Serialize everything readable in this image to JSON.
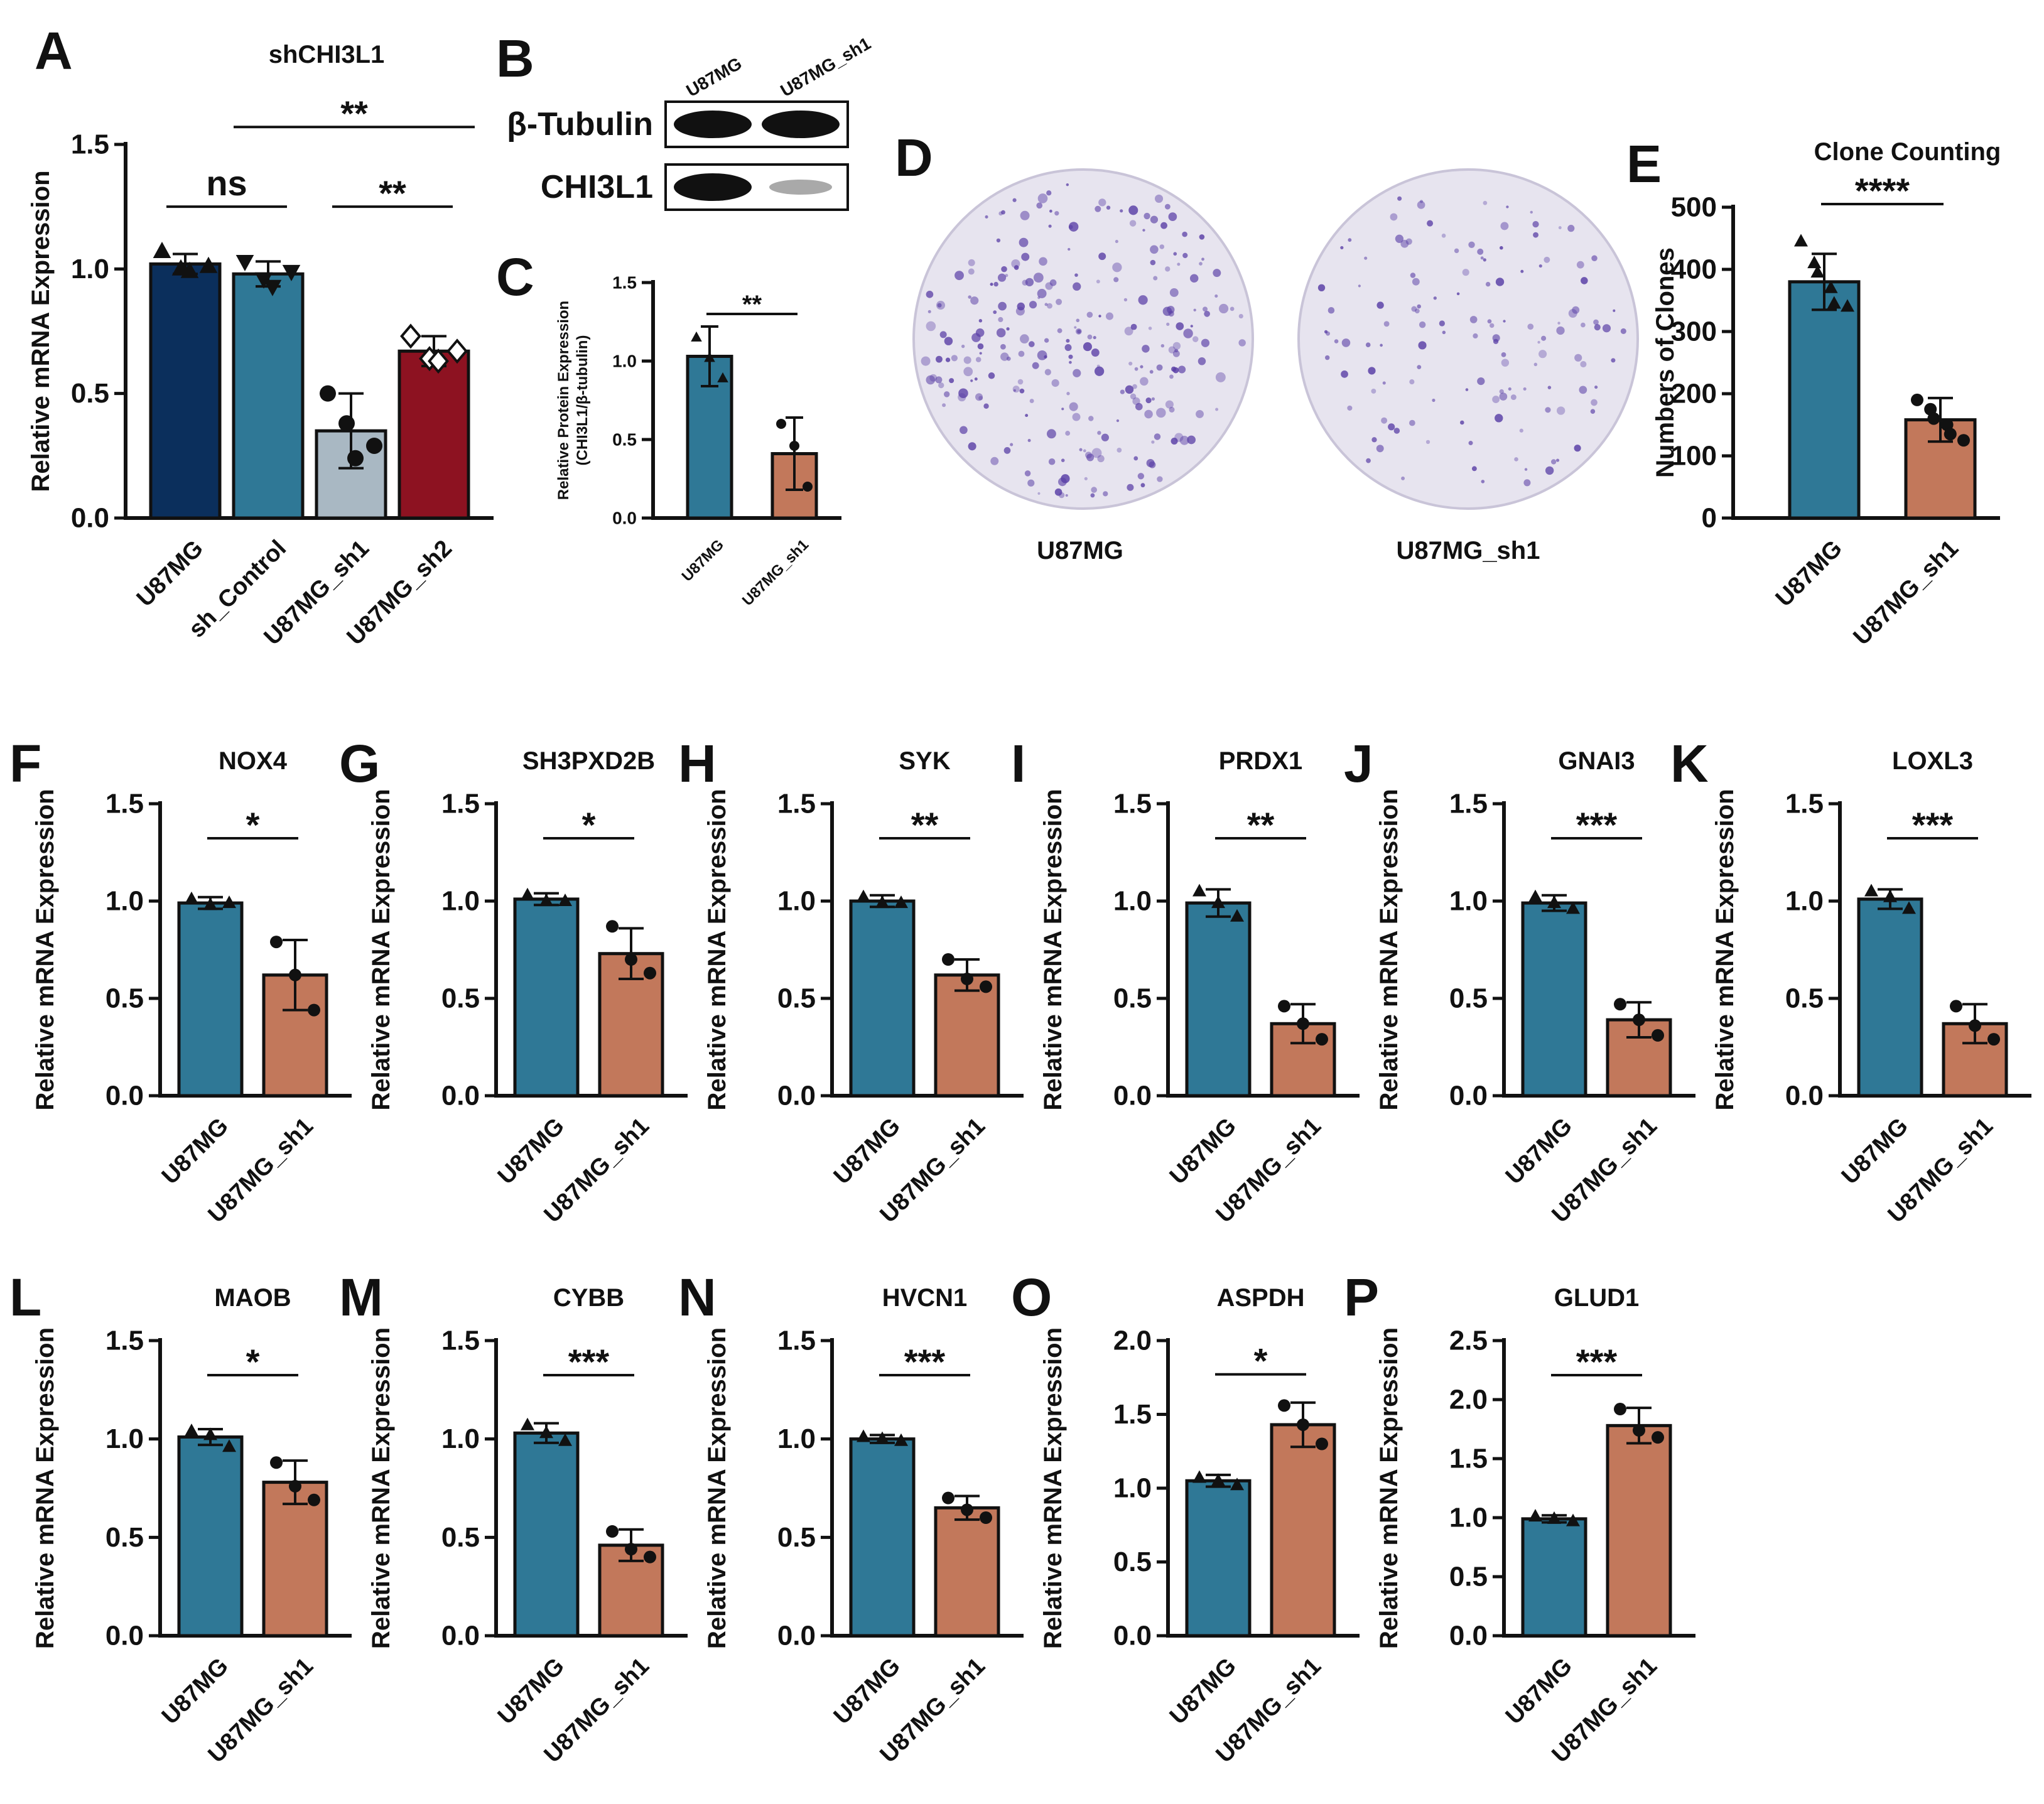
{
  "figure": {
    "colors": {
      "navy": "#0b2f5c",
      "teal": "#2f7896",
      "gray": "#a9b8c3",
      "red": "#8d1221",
      "salmon": "#c2785b",
      "black": "#111111",
      "dish_stain": "#5a3fa6",
      "dish_bg": "#e7e4ef"
    },
    "western_blot": {
      "panel": "B",
      "lanes": [
        "U87MG",
        "U87MG_sh1"
      ],
      "rows": [
        {
          "label": "β-Tubulin",
          "intensities": [
            1.0,
            1.0
          ]
        },
        {
          "label": "CHI3L1",
          "intensities": [
            1.0,
            0.25
          ]
        }
      ]
    },
    "colony_dishes": {
      "panel": "D",
      "labels": [
        "U87MG",
        "U87MG_sh1"
      ]
    }
  },
  "chart_data": [
    {
      "panel": "A",
      "type": "bar",
      "title": "shCHI3L1",
      "categories": [
        "U87MG",
        "sh_Control",
        "U87MG_sh1",
        "U87MG_sh2"
      ],
      "values": [
        1.02,
        0.98,
        0.35,
        0.67
      ],
      "errors": [
        0.04,
        0.05,
        0.15,
        0.06
      ],
      "points": [
        [
          1.07,
          1.0,
          0.99,
          1.01
        ],
        [
          1.03,
          0.96,
          0.93,
          0.99
        ],
        [
          0.5,
          0.38,
          0.24,
          0.29
        ],
        [
          0.73,
          0.64,
          0.63,
          0.67
        ]
      ],
      "markers": [
        "triangle",
        "triangle-down",
        "circle",
        "diamond"
      ],
      "colors": [
        "#0b2f5c",
        "#2f7896",
        "#a9b8c3",
        "#8d1221"
      ],
      "ylabel": "Relative mRNA Expression",
      "ylim": [
        0,
        1.5
      ],
      "yticks": [
        "0.0",
        "0.5",
        "1.0",
        "1.5"
      ],
      "significance": [
        {
          "from": 0,
          "to": 1,
          "label": "ns"
        },
        {
          "from": 2,
          "to": 3,
          "label": "**"
        },
        {
          "from": 1,
          "to": 3,
          "label": "**"
        }
      ]
    },
    {
      "panel": "C",
      "type": "bar",
      "title": "",
      "categories": [
        "U87MG",
        "U87MG_sh1"
      ],
      "values": [
        1.03,
        0.41
      ],
      "errors": [
        0.19,
        0.23
      ],
      "points": [
        [
          1.15,
          1.02,
          0.89
        ],
        [
          0.6,
          0.46,
          0.2
        ]
      ],
      "markers": [
        "triangle",
        "circle"
      ],
      "colors": [
        "#2f7896",
        "#c2785b"
      ],
      "ylabel": "Relative  Protein Expression",
      "ylabel2": "(CHI3L1/β-tubulin)",
      "ylim": [
        0,
        1.5
      ],
      "yticks": [
        "0.0",
        "0.5",
        "1.0",
        "1.5"
      ],
      "significance": [
        {
          "from": 0,
          "to": 1,
          "label": "**"
        }
      ]
    },
    {
      "panel": "E",
      "type": "bar",
      "title": "Clone Counting",
      "categories": [
        "U87MG",
        "U87MG_sh1"
      ],
      "values": [
        380,
        158
      ],
      "errors": [
        45,
        35
      ],
      "points": [
        [
          445,
          410,
          395,
          370,
          345,
          340
        ],
        [
          190,
          175,
          160,
          150,
          135,
          125
        ]
      ],
      "markers": [
        "triangle",
        "circle"
      ],
      "colors": [
        "#2f7896",
        "#c2785b"
      ],
      "ylabel": "Numbers of Clones",
      "ylim": [
        0,
        500
      ],
      "yticks": [
        "0",
        "100",
        "200",
        "300",
        "400",
        "500"
      ],
      "significance": [
        {
          "from": 0,
          "to": 1,
          "label": "****"
        }
      ]
    },
    {
      "panel": "F",
      "type": "bar",
      "title": "NOX4",
      "categories": [
        "U87MG",
        "U87MG_sh1"
      ],
      "values": [
        0.99,
        0.62
      ],
      "errors": [
        0.03,
        0.18
      ],
      "points": [
        [
          1.01,
          0.98,
          0.99
        ],
        [
          0.79,
          0.62,
          0.44
        ]
      ],
      "markers": [
        "triangle",
        "circle"
      ],
      "colors": [
        "#2f7896",
        "#c2785b"
      ],
      "ylabel": "Relative mRNA Expression",
      "ylim": [
        0,
        1.5
      ],
      "yticks": [
        "0.0",
        "0.5",
        "1.0",
        "1.5"
      ],
      "significance": [
        {
          "from": 0,
          "to": 1,
          "label": "*"
        }
      ]
    },
    {
      "panel": "G",
      "type": "bar",
      "title": "SH3PXD2B",
      "categories": [
        "U87MG",
        "U87MG_sh1"
      ],
      "values": [
        1.01,
        0.73
      ],
      "errors": [
        0.03,
        0.13
      ],
      "points": [
        [
          1.03,
          1.0,
          1.0
        ],
        [
          0.87,
          0.7,
          0.63
        ]
      ],
      "markers": [
        "triangle",
        "circle"
      ],
      "colors": [
        "#2f7896",
        "#c2785b"
      ],
      "ylabel": "Relative mRNA Expression",
      "ylim": [
        0,
        1.5
      ],
      "yticks": [
        "0.0",
        "0.5",
        "1.0",
        "1.5"
      ],
      "significance": [
        {
          "from": 0,
          "to": 1,
          "label": "*"
        }
      ]
    },
    {
      "panel": "H",
      "type": "bar",
      "title": "SYK",
      "categories": [
        "U87MG",
        "U87MG_sh1"
      ],
      "values": [
        1.0,
        0.62
      ],
      "errors": [
        0.03,
        0.08
      ],
      "points": [
        [
          1.02,
          0.99,
          0.99
        ],
        [
          0.7,
          0.6,
          0.56
        ]
      ],
      "markers": [
        "triangle",
        "circle"
      ],
      "colors": [
        "#2f7896",
        "#c2785b"
      ],
      "ylabel": "Relative mRNA Expression",
      "ylim": [
        0,
        1.5
      ],
      "yticks": [
        "0.0",
        "0.5",
        "1.0",
        "1.5"
      ],
      "significance": [
        {
          "from": 0,
          "to": 1,
          "label": "**"
        }
      ]
    },
    {
      "panel": "I",
      "type": "bar",
      "title": "PRDX1",
      "categories": [
        "U87MG",
        "U87MG_sh1"
      ],
      "values": [
        0.99,
        0.37
      ],
      "errors": [
        0.07,
        0.1
      ],
      "points": [
        [
          1.05,
          0.99,
          0.92
        ],
        [
          0.46,
          0.37,
          0.29
        ]
      ],
      "markers": [
        "triangle",
        "circle"
      ],
      "colors": [
        "#2f7896",
        "#c2785b"
      ],
      "ylabel": "Relative mRNA Expression",
      "ylim": [
        0,
        1.5
      ],
      "yticks": [
        "0.0",
        "0.5",
        "1.0",
        "1.5"
      ],
      "significance": [
        {
          "from": 0,
          "to": 1,
          "label": "**"
        }
      ]
    },
    {
      "panel": "J",
      "type": "bar",
      "title": "GNAI3",
      "categories": [
        "U87MG",
        "U87MG_sh1"
      ],
      "values": [
        0.99,
        0.39
      ],
      "errors": [
        0.04,
        0.09
      ],
      "points": [
        [
          1.02,
          0.99,
          0.96
        ],
        [
          0.47,
          0.39,
          0.31
        ]
      ],
      "markers": [
        "triangle",
        "circle"
      ],
      "colors": [
        "#2f7896",
        "#c2785b"
      ],
      "ylabel": "Relative mRNA Expression",
      "ylim": [
        0,
        1.5
      ],
      "yticks": [
        "0.0",
        "0.5",
        "1.0",
        "1.5"
      ],
      "significance": [
        {
          "from": 0,
          "to": 1,
          "label": "***"
        }
      ]
    },
    {
      "panel": "K",
      "type": "bar",
      "title": "LOXL3",
      "categories": [
        "U87MG",
        "U87MG_sh1"
      ],
      "values": [
        1.01,
        0.37
      ],
      "errors": [
        0.05,
        0.1
      ],
      "points": [
        [
          1.05,
          1.02,
          0.96
        ],
        [
          0.46,
          0.36,
          0.29
        ]
      ],
      "markers": [
        "triangle",
        "circle"
      ],
      "colors": [
        "#2f7896",
        "#c2785b"
      ],
      "ylabel": "Relative mRNA Expression",
      "ylim": [
        0,
        1.5
      ],
      "yticks": [
        "0.0",
        "0.5",
        "1.0",
        "1.5"
      ],
      "significance": [
        {
          "from": 0,
          "to": 1,
          "label": "***"
        }
      ]
    },
    {
      "panel": "L",
      "type": "bar",
      "title": "MAOB",
      "categories": [
        "U87MG",
        "U87MG_sh1"
      ],
      "values": [
        1.01,
        0.78
      ],
      "errors": [
        0.04,
        0.11
      ],
      "points": [
        [
          1.04,
          1.02,
          0.96
        ],
        [
          0.88,
          0.76,
          0.69
        ]
      ],
      "markers": [
        "triangle",
        "circle"
      ],
      "colors": [
        "#2f7896",
        "#c2785b"
      ],
      "ylabel": "Relative mRNA Expression",
      "ylim": [
        0,
        1.5
      ],
      "yticks": [
        "0.0",
        "0.5",
        "1.0",
        "1.5"
      ],
      "significance": [
        {
          "from": 0,
          "to": 1,
          "label": "*"
        }
      ]
    },
    {
      "panel": "M",
      "type": "bar",
      "title": "CYBB",
      "categories": [
        "U87MG",
        "U87MG_sh1"
      ],
      "values": [
        1.03,
        0.46
      ],
      "errors": [
        0.05,
        0.08
      ],
      "points": [
        [
          1.07,
          1.03,
          0.99
        ],
        [
          0.53,
          0.44,
          0.4
        ]
      ],
      "markers": [
        "triangle",
        "circle"
      ],
      "colors": [
        "#2f7896",
        "#c2785b"
      ],
      "ylabel": "Relative mRNA Expression",
      "ylim": [
        0,
        1.5
      ],
      "yticks": [
        "0.0",
        "0.5",
        "1.0",
        "1.5"
      ],
      "significance": [
        {
          "from": 0,
          "to": 1,
          "label": "***"
        }
      ]
    },
    {
      "panel": "N",
      "type": "bar",
      "title": "HVCN1",
      "categories": [
        "U87MG",
        "U87MG_sh1"
      ],
      "values": [
        1.0,
        0.65
      ],
      "errors": [
        0.02,
        0.06
      ],
      "points": [
        [
          1.01,
          1.0,
          0.99
        ],
        [
          0.7,
          0.64,
          0.6
        ]
      ],
      "markers": [
        "triangle",
        "circle"
      ],
      "colors": [
        "#2f7896",
        "#c2785b"
      ],
      "ylabel": "Relative mRNA Expression",
      "ylim": [
        0,
        1.5
      ],
      "yticks": [
        "0.0",
        "0.5",
        "1.0",
        "1.5"
      ],
      "significance": [
        {
          "from": 0,
          "to": 1,
          "label": "***"
        }
      ]
    },
    {
      "panel": "O",
      "type": "bar",
      "title": "ASPDH",
      "categories": [
        "U87MG",
        "U87MG_sh1"
      ],
      "values": [
        1.05,
        1.43
      ],
      "errors": [
        0.04,
        0.15
      ],
      "points": [
        [
          1.07,
          1.05,
          1.02
        ],
        [
          1.56,
          1.43,
          1.3
        ]
      ],
      "markers": [
        "triangle",
        "circle"
      ],
      "colors": [
        "#2f7896",
        "#c2785b"
      ],
      "ylabel": "Relative mRNA Expression",
      "ylim": [
        0,
        2.0
      ],
      "yticks": [
        "0.0",
        "0.5",
        "1.0",
        "1.5",
        "2.0"
      ],
      "significance": [
        {
          "from": 0,
          "to": 1,
          "label": "*"
        }
      ]
    },
    {
      "panel": "P",
      "type": "bar",
      "title": "GLUD1",
      "categories": [
        "U87MG",
        "U87MG_sh1"
      ],
      "values": [
        0.99,
        1.78
      ],
      "errors": [
        0.03,
        0.15
      ],
      "points": [
        [
          1.01,
          0.99,
          0.97
        ],
        [
          1.92,
          1.74,
          1.68
        ]
      ],
      "markers": [
        "triangle",
        "circle"
      ],
      "colors": [
        "#2f7896",
        "#c2785b"
      ],
      "ylabel": "Relative mRNA Expression",
      "ylim": [
        0,
        2.5
      ],
      "yticks": [
        "0.0",
        "0.5",
        "1.0",
        "1.5",
        "2.0",
        "2.5"
      ],
      "significance": [
        {
          "from": 0,
          "to": 1,
          "label": "***"
        }
      ]
    }
  ]
}
